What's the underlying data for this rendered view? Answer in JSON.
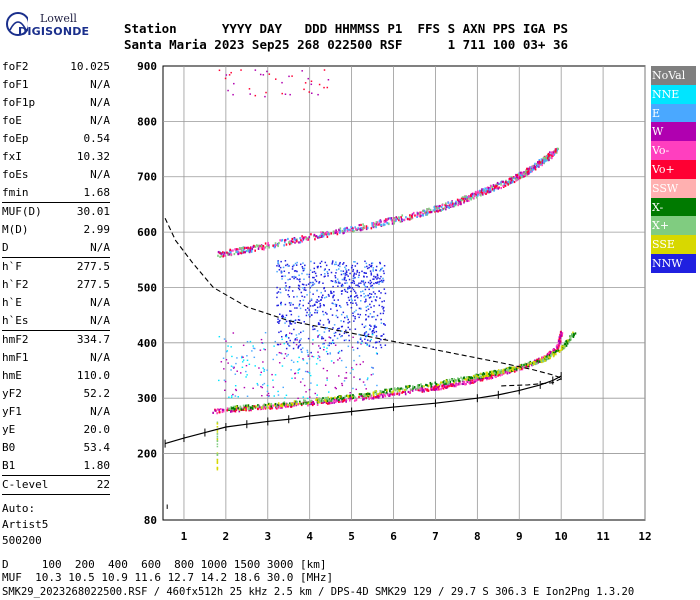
{
  "logo": {
    "line1": "Lowell",
    "line2": "DIGISONDE"
  },
  "header": {
    "row1": "Station      YYYY DAY   DDD HHMMSS P1  FFS S AXN PPS IGA PS",
    "row2": "Santa Maria 2023 Sep25 268 022500 RSF      1 711 100 03+ 36"
  },
  "params": [
    {
      "k": "foF2",
      "v": "10.025"
    },
    {
      "k": "foF1",
      "v": "N/A"
    },
    {
      "k": "foF1p",
      "v": "N/A"
    },
    {
      "k": "foE",
      "v": "N/A"
    },
    {
      "k": "foEp",
      "v": "0.54"
    },
    {
      "k": "fxI",
      "v": "10.32"
    },
    {
      "k": "foEs",
      "v": "N/A"
    },
    {
      "k": "fmin",
      "v": "1.68"
    },
    {
      "k": "MUF(D)",
      "v": "30.01",
      "sep": true
    },
    {
      "k": "M(D)",
      "v": "2.99"
    },
    {
      "k": "D",
      "v": "N/A"
    },
    {
      "k": "h`F",
      "v": "277.5",
      "sep": true
    },
    {
      "k": "h`F2",
      "v": "277.5"
    },
    {
      "k": "h`E",
      "v": "N/A"
    },
    {
      "k": "h`Es",
      "v": "N/A"
    },
    {
      "k": "hmF2",
      "v": "334.7",
      "sep": true
    },
    {
      "k": "hmF1",
      "v": "N/A"
    },
    {
      "k": "hmE",
      "v": "110.0"
    },
    {
      "k": "yF2",
      "v": "52.2"
    },
    {
      "k": "yF1",
      "v": "N/A"
    },
    {
      "k": "yE",
      "v": "20.0"
    },
    {
      "k": "B0",
      "v": "53.4"
    },
    {
      "k": "B1",
      "v": "1.80"
    },
    {
      "k": "C-level",
      "v": "22",
      "sep": true
    }
  ],
  "auto": {
    "l1": "Auto:",
    "l2": "Artist5",
    "l3": "500200"
  },
  "legend": [
    {
      "label": "NoVal",
      "bg": "#7f7f7f",
      "fg": "#ffffff"
    },
    {
      "label": "NNE",
      "bg": "#00e5ff",
      "fg": "#ffffff"
    },
    {
      "label": "E",
      "bg": "#4aa8ff",
      "fg": "#ffffff"
    },
    {
      "label": "W",
      "bg": "#b000b0",
      "fg": "#ffffff"
    },
    {
      "label": "Vo-",
      "bg": "#ff3fbf",
      "fg": "#ffffff"
    },
    {
      "label": "Vo+",
      "bg": "#ff0033",
      "fg": "#ffffff"
    },
    {
      "label": "SSW",
      "bg": "#ffb0b0",
      "fg": "#ffffff"
    },
    {
      "label": "X-",
      "bg": "#007a00",
      "fg": "#ffffff"
    },
    {
      "label": "X+",
      "bg": "#80cc80",
      "fg": "#ffffff"
    },
    {
      "label": "SSE",
      "bg": "#d8d800",
      "fg": "#ffffff"
    },
    {
      "label": "NNW",
      "bg": "#2020e0",
      "fg": "#ffffff"
    }
  ],
  "footer": {
    "line1": "D     100  200  400  600  800 1000 1500 3000 [km]",
    "line2": "MUF  10.3 10.5 10.9 11.6 12.7 14.2 18.6 30.0 [MHz]",
    "line3": "SMK29_2023268022500.RSF / 460fx512h 25 kHz 2.5 km / DPS-4D SMK29 129 / 29.7 S 306.3 E Ion2Png 1.3.20"
  },
  "chart_data": {
    "type": "scatter",
    "xlim": [
      0.5,
      12
    ],
    "ylim": [
      80,
      900
    ],
    "x_ticks": [
      "1",
      "2",
      "3",
      "4",
      "5",
      "6",
      "7",
      "8",
      "9",
      "10",
      "11",
      "12"
    ],
    "y_ticks": [
      "80",
      "200",
      "300",
      "400",
      "500",
      "600",
      "700",
      "800",
      "900"
    ],
    "grid": true,
    "traces": {
      "o_lower": {
        "x": [
          1.7,
          2.5,
          3.5,
          4.5,
          5.5,
          6.5,
          7.2,
          7.8,
          8.3,
          8.8,
          9.2,
          9.6,
          9.9,
          10.0
        ],
        "y": [
          278,
          283,
          289,
          296,
          305,
          315,
          323,
          332,
          341,
          352,
          362,
          375,
          393,
          420
        ]
      },
      "x_lower": {
        "x": [
          2.0,
          3.0,
          4.0,
          5.0,
          6.0,
          7.0,
          7.8,
          8.4,
          9.0,
          9.6,
          10.0,
          10.3
        ],
        "y": [
          283,
          288,
          296,
          305,
          316,
          328,
          338,
          348,
          358,
          372,
          392,
          420
        ]
      },
      "o_upper": {
        "x": [
          1.8,
          2.5,
          3.5,
          4.5,
          5.5,
          6.5,
          7.2,
          7.8,
          8.3,
          8.8,
          9.2,
          9.6,
          9.9
        ],
        "y": [
          562,
          570,
          585,
          600,
          615,
          632,
          648,
          664,
          680,
          695,
          712,
          733,
          750
        ]
      },
      "es_blob": {
        "x": [
          3.2,
          5.8
        ],
        "y": [
          380,
          550
        ]
      }
    },
    "x_markers": [
      "1.8",
      "1.85"
    ],
    "profile": {
      "real_height": {
        "x": [
          0.55,
          1.0,
          1.5,
          2.0,
          2.5,
          3.0,
          3.5,
          4.0,
          5.0,
          6.0,
          7.0,
          8.0,
          8.5,
          9.0,
          9.5,
          9.8,
          10.0
        ],
        "y": [
          218,
          228,
          238,
          248,
          253,
          258,
          262,
          268,
          276,
          284,
          291,
          300,
          306,
          314,
          324,
          332,
          340
        ]
      },
      "dashed": {
        "x": [
          0.55,
          0.8,
          1.2,
          1.7,
          2.5,
          3.5,
          4.5,
          5.5,
          6.5,
          7.5,
          8.5,
          9.3,
          9.8,
          10.02,
          9.8,
          9.2,
          8.5
        ],
        "y": [
          625,
          585,
          545,
          500,
          465,
          440,
          425,
          410,
          395,
          380,
          365,
          352,
          342,
          336,
          328,
          324,
          322
        ]
      }
    }
  }
}
